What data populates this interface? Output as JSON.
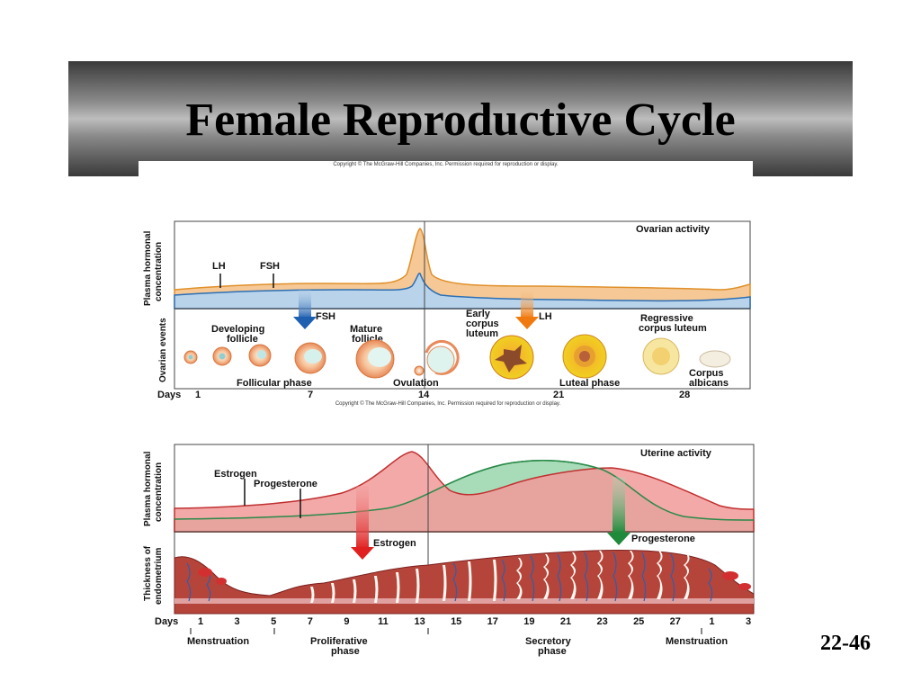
{
  "title": "Female Reproductive Cycle",
  "copyright_top": "Copyright © The McGraw-Hill Companies, Inc. Permission required for reproduction or display.",
  "copyright_mid": "Copyright © The McGraw-Hill Companies, Inc. Permission required for reproduction or display.",
  "slide_number": "22-46",
  "ovarian": {
    "panel_label": "Ovarian activity",
    "y_label_top": "Plasma hormonal concentration",
    "y_label_bottom": "Ovarian events",
    "hormone_lh": "LH",
    "hormone_fsh": "FSH",
    "arrow_fsh": "FSH",
    "arrow_lh": "LH",
    "developing_follicle": [
      "Developing",
      "follicle"
    ],
    "mature_follicle": [
      "Mature",
      "follicle"
    ],
    "early_corpus_luteum": [
      "Early",
      "corpus",
      "luteum"
    ],
    "regressive_corpus_luteum": [
      "Regressive",
      "corpus luteum"
    ],
    "corpus_albicans": [
      "Corpus",
      "albicans"
    ],
    "follicular_phase": "Follicular phase",
    "ovulation": "Ovulation",
    "luteal_phase": "Luteal phase",
    "days_label": "Days",
    "days": [
      "1",
      "7",
      "14",
      "21",
      "28"
    ]
  },
  "uterine": {
    "panel_label": "Uterine activity",
    "y_label_top": "Plasma hormonal concentration",
    "y_label_bottom": "Thickness of endometrium",
    "estrogen_curve": "Estrogen",
    "progesterone_curve": "Progesterone",
    "arrow_estrogen": "Estrogen",
    "arrow_progesterone": "Progesterone",
    "days_label": "Days",
    "days": [
      "1",
      "3",
      "5",
      "7",
      "9",
      "11",
      "13",
      "15",
      "17",
      "19",
      "21",
      "23",
      "25",
      "27",
      "1",
      "3"
    ],
    "phases": {
      "menstruation_1": "Menstruation",
      "proliferative": [
        "Proliferative",
        "phase"
      ],
      "secretory": [
        "Secretory",
        "phase"
      ],
      "menstruation_2": "Menstruation"
    }
  },
  "colors": {
    "lh_fill": "#f5c896",
    "fsh_fill": "#b9d3ea",
    "estrogen_fill": "#f29a9a",
    "progesterone_fill": "#a8dcb8",
    "endometrium": "#b5453a",
    "arrow_blue": "#1f5fb0",
    "arrow_orange": "#f07a10",
    "arrow_red": "#e02020",
    "arrow_green": "#1f8a3a"
  }
}
